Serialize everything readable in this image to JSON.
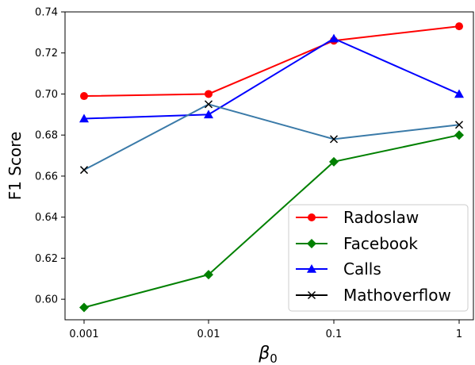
{
  "chart_data": {
    "type": "line",
    "categories": [
      "0.001",
      "0.01",
      "0.1",
      "1"
    ],
    "xlabel": "β",
    "xlabel_subscript": "0",
    "ylabel": "F1 Score",
    "ylim": [
      0.59,
      0.74
    ],
    "yticks": [
      "0.60",
      "0.62",
      "0.64",
      "0.66",
      "0.68",
      "0.70",
      "0.72",
      "0.74"
    ],
    "yticks_values": [
      0.6,
      0.62,
      0.64,
      0.66,
      0.68,
      0.7,
      0.72,
      0.74
    ],
    "grid": false,
    "legend_position": "bottom-right",
    "series": [
      {
        "name": "Radoslaw",
        "color": "#ff0000",
        "marker": "circle",
        "values": [
          0.699,
          0.7,
          0.726,
          0.733
        ]
      },
      {
        "name": "Facebook",
        "color": "#008000",
        "marker": "diamond",
        "values": [
          0.596,
          0.612,
          0.667,
          0.68
        ]
      },
      {
        "name": "Calls",
        "color": "#0000ff",
        "marker": "triangle",
        "values": [
          0.688,
          0.69,
          0.727,
          0.7
        ]
      },
      {
        "name": "Mathoverflow",
        "color": "#000000",
        "line_color": "#3a7aa8",
        "marker": "x",
        "values": [
          0.663,
          0.695,
          0.678,
          0.685
        ]
      }
    ]
  }
}
